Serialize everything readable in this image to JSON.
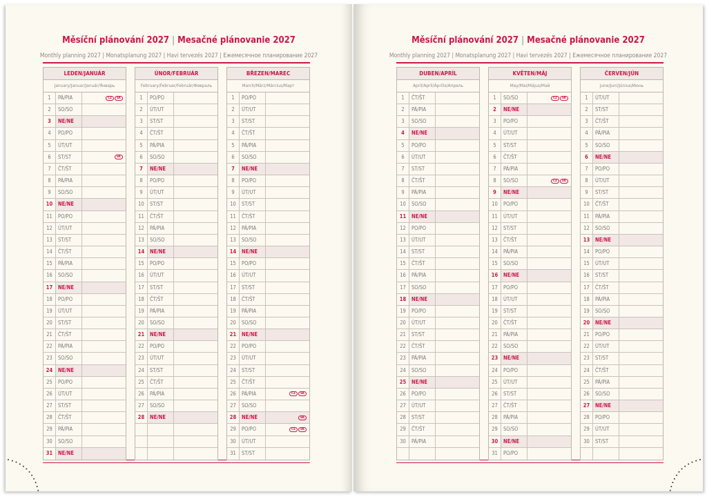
{
  "header": {
    "title_cz": "Měsíční plánování 2027",
    "title_sep": "|",
    "title_sk": "Mesačné plánovanie 2027",
    "subtitle": "Monthly planning 2027 | Monatsplanung 2027 | Havi tervezés 2027 | Ежемесячное планирование 2027"
  },
  "sunday_label": "NE/NE",
  "colors": {
    "accent": "#c8184a",
    "paper": "#fcf9f0",
    "sunday_shade": "#f1e7e4"
  },
  "months": [
    {
      "name": "LEDEN/JANUÁR",
      "sub": "January/Januar/Január/Январь",
      "days": [
        "PÁ/PIA",
        "SO/SO",
        "NE/NE",
        "PO/PO",
        "ÚT/UT",
        "ST/ST",
        "ČT/ŠT",
        "PÁ/PIA",
        "SO/SO",
        "NE/NE",
        "PO/PO",
        "ÚT/UT",
        "ST/ST",
        "ČT/ŠT",
        "PÁ/PIA",
        "SO/SO",
        "NE/NE",
        "PO/PO",
        "ÚT/UT",
        "ST/ST",
        "ČT/ŠT",
        "PÁ/PIA",
        "SO/SO",
        "NE/NE",
        "PO/PO",
        "ÚT/UT",
        "ST/ST",
        "ČT/ŠT",
        "PÁ/PIA",
        "SO/SO",
        "NE/NE"
      ],
      "holidays": {
        "1": [
          "CZ",
          "SK"
        ],
        "6": [
          "SK"
        ]
      }
    },
    {
      "name": "ÚNOR/FEBRUÁR",
      "sub": "February/Februar/Február/Февраль",
      "days": [
        "PO/PO",
        "ÚT/UT",
        "ST/ST",
        "ČT/ŠT",
        "PÁ/PIA",
        "SO/SO",
        "NE/NE",
        "PO/PO",
        "ÚT/UT",
        "ST/ST",
        "ČT/ŠT",
        "PÁ/PIA",
        "SO/SO",
        "NE/NE",
        "PO/PO",
        "ÚT/UT",
        "ST/ST",
        "ČT/ŠT",
        "PÁ/PIA",
        "SO/SO",
        "NE/NE",
        "PO/PO",
        "ÚT/UT",
        "ST/ST",
        "ČT/ŠT",
        "PÁ/PIA",
        "SO/SO",
        "NE/NE"
      ],
      "holidays": {}
    },
    {
      "name": "BŘEZEN/MAREC",
      "sub": "March/März/Március/Март",
      "days": [
        "PO/PO",
        "ÚT/UT",
        "ST/ST",
        "ČT/ŠT",
        "PÁ/PIA",
        "SO/SO",
        "NE/NE",
        "PO/PO",
        "ÚT/UT",
        "ST/ST",
        "ČT/ŠT",
        "PÁ/PIA",
        "SO/SO",
        "NE/NE",
        "PO/PO",
        "ÚT/UT",
        "ST/ST",
        "ČT/ŠT",
        "PÁ/PIA",
        "SO/SO",
        "NE/NE",
        "PO/PO",
        "ÚT/UT",
        "ST/ST",
        "ČT/ŠT",
        "PÁ/PIA",
        "SO/SO",
        "NE/NE",
        "PO/PO",
        "ÚT/UT",
        "ST/ST"
      ],
      "holidays": {
        "26": [
          "CZ",
          "SK"
        ],
        "28": [
          "SK"
        ],
        "29": [
          "CZ",
          "SK"
        ]
      }
    },
    {
      "name": "DUBEN/APRÍL",
      "sub": "April/April/Április/Апрель",
      "days": [
        "ČT/ŠT",
        "PÁ/PIA",
        "SO/SO",
        "NE/NE",
        "PO/PO",
        "ÚT/UT",
        "ST/ST",
        "ČT/ŠT",
        "PÁ/PIA",
        "SO/SO",
        "NE/NE",
        "PO/PO",
        "ÚT/UT",
        "ST/ST",
        "ČT/ŠT",
        "PÁ/PIA",
        "SO/SO",
        "NE/NE",
        "PO/PO",
        "ÚT/UT",
        "ST/ST",
        "ČT/ŠT",
        "PÁ/PIA",
        "SO/SO",
        "NE/NE",
        "PO/PO",
        "ÚT/UT",
        "ST/ST",
        "ČT/ŠT",
        "PÁ/PIA"
      ],
      "holidays": {}
    },
    {
      "name": "KVĚTEN/MÁJ",
      "sub": "May/Mai/Május/Май",
      "days": [
        "SO/SO",
        "NE/NE",
        "PO/PO",
        "ÚT/UT",
        "ST/ST",
        "ČT/ŠT",
        "PÁ/PIA",
        "SO/SO",
        "NE/NE",
        "PO/PO",
        "ÚT/UT",
        "ST/ST",
        "ČT/ŠT",
        "PÁ/PIA",
        "SO/SO",
        "NE/NE",
        "PO/PO",
        "ÚT/UT",
        "ST/ST",
        "ČT/ŠT",
        "PÁ/PIA",
        "SO/SO",
        "NE/NE",
        "PO/PO",
        "ÚT/UT",
        "ST/ST",
        "ČT/ŠT",
        "PÁ/PIA",
        "SO/SO",
        "NE/NE",
        "PO/PO"
      ],
      "holidays": {
        "1": [
          "CZ",
          "SK"
        ],
        "8": [
          "CZ",
          "SK"
        ]
      }
    },
    {
      "name": "ČERVEN/JÚN",
      "sub": "June/Juni/Június/Июнь",
      "days": [
        "ÚT/UT",
        "ST/ST",
        "ČT/ŠT",
        "PÁ/PIA",
        "SO/SO",
        "NE/NE",
        "PO/PO",
        "ÚT/UT",
        "ST/ST",
        "ČT/ŠT",
        "PÁ/PIA",
        "SO/SO",
        "NE/NE",
        "PO/PO",
        "ÚT/UT",
        "ST/ST",
        "ČT/ŠT",
        "PÁ/PIA",
        "SO/SO",
        "NE/NE",
        "PO/PO",
        "ÚT/UT",
        "ST/ST",
        "ČT/ŠT",
        "PÁ/PIA",
        "SO/SO",
        "NE/NE",
        "PO/PO",
        "ÚT/UT",
        "ST/ST"
      ],
      "holidays": {}
    }
  ]
}
